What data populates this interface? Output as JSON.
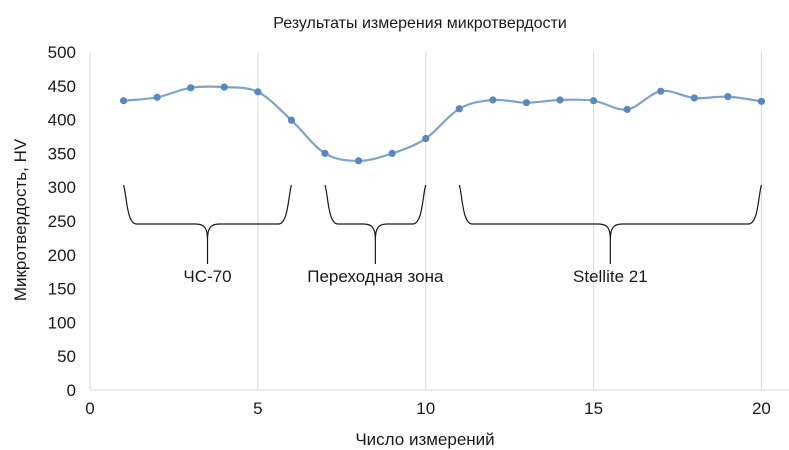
{
  "chart_data": {
    "type": "line",
    "title": "Результаты измерения микротвердости",
    "xlabel": "Число измерений",
    "ylabel": "Микротвердость, HV",
    "xlim": [
      0,
      21
    ],
    "ylim": [
      0,
      500
    ],
    "x_ticks": [
      0,
      5,
      10,
      15,
      20
    ],
    "y_ticks": [
      0,
      50,
      100,
      150,
      200,
      250,
      300,
      350,
      400,
      450,
      500
    ],
    "grid": "vertical",
    "smooth": true,
    "colors": {
      "line": "#7fa1cf",
      "marker": "#5b87c0"
    },
    "series": [
      {
        "x": [
          1,
          2,
          3,
          4,
          5,
          6,
          7,
          8,
          9,
          10,
          11,
          12,
          13,
          14,
          15,
          16,
          17,
          18,
          19,
          20
        ],
        "y": [
          428,
          433,
          447,
          448,
          441,
          399,
          350,
          339,
          350,
          372,
          416,
          429,
          425,
          429,
          428,
          415,
          442,
          432,
          434,
          427
        ]
      }
    ],
    "annotations": [
      {
        "label": "ЧС-70",
        "x_from": 1,
        "x_to": 6
      },
      {
        "label": "Переходная зона",
        "x_from": 7,
        "x_to": 10
      },
      {
        "label": "Stellite 21",
        "x_from": 11,
        "x_to": 20
      }
    ]
  }
}
